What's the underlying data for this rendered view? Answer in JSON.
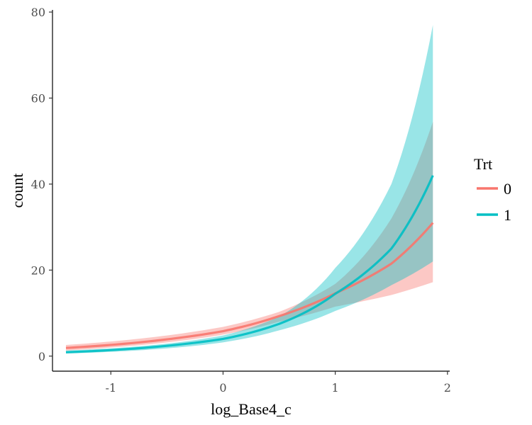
{
  "chart_data": {
    "type": "line",
    "xlabel": "log_Base4_c",
    "ylabel": "count",
    "xlim": [
      -1.52,
      2.02
    ],
    "ylim": [
      -3.5,
      80.5
    ],
    "x_ticks": [
      -1,
      0,
      1,
      2
    ],
    "x_tick_labels": [
      "-1",
      "0",
      "1",
      "2"
    ],
    "y_ticks": [
      0,
      20,
      40,
      60,
      80
    ],
    "y_tick_labels": [
      "0",
      "20",
      "40",
      "60",
      "80"
    ],
    "grid": false,
    "legend": {
      "title": "Trt",
      "placement": "right"
    },
    "band_opacity": 0.4,
    "series": [
      {
        "name": "0",
        "color": "#F8766D",
        "x": [
          -1.4,
          -1.0,
          -0.5,
          0.0,
          0.5,
          1.0,
          1.5,
          1.87
        ],
        "y": [
          1.9,
          2.6,
          3.9,
          5.8,
          9.3,
          14.6,
          21.5,
          31.0
        ],
        "lower": [
          1.3,
          2.0,
          3.2,
          5.0,
          8.0,
          11.5,
          14.2,
          17.2
        ],
        "upper": [
          2.6,
          3.4,
          4.8,
          6.8,
          10.3,
          16.8,
          32.0,
          54.5
        ]
      },
      {
        "name": "1",
        "color": "#00BFC4",
        "x": [
          -1.4,
          -1.0,
          -0.5,
          0.0,
          0.5,
          1.0,
          1.5,
          1.87
        ],
        "y": [
          0.9,
          1.4,
          2.4,
          4.0,
          7.5,
          14.5,
          25.0,
          42.0
        ],
        "lower": [
          0.6,
          1.0,
          1.8,
          3.2,
          6.0,
          10.5,
          16.5,
          22.0
        ],
        "upper": [
          1.3,
          1.8,
          2.9,
          4.8,
          9.2,
          20.5,
          40.0,
          77.0
        ]
      }
    ]
  }
}
